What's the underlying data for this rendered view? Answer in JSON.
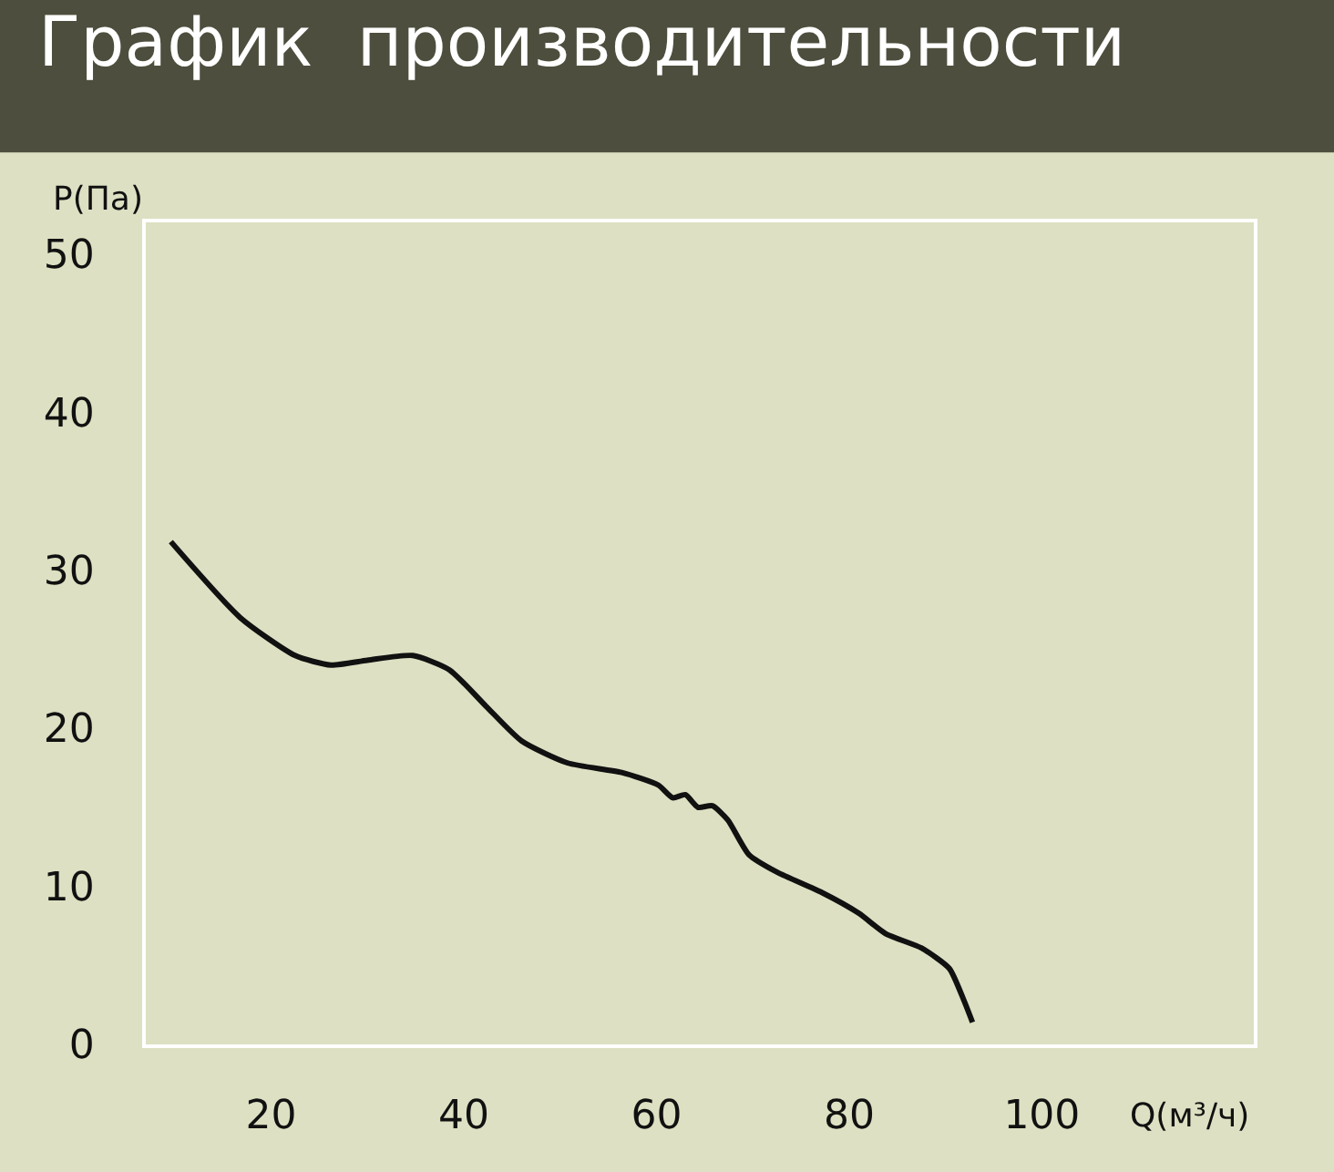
{
  "chart_data": {
    "type": "line",
    "title": "График  производительности",
    "xlabel": "Q(м³/ч)",
    "ylabel": "P(Па)",
    "x": [
      9.6,
      16.8,
      22.5,
      26.2,
      30,
      34.7,
      38.5,
      42.3,
      46,
      50.8,
      56.4,
      60.2,
      61.7,
      63,
      64.3,
      65.8,
      67.4,
      69.6,
      72.5,
      77.2,
      81,
      83.8,
      87.5,
      90.4,
      91.9,
      92.8
    ],
    "series": [
      {
        "color": "#111111",
        "values": [
          31.8,
          27,
          24.6,
          24,
          24.3,
          24.6,
          23.7,
          21.4,
          19.2,
          17.8,
          17.2,
          16.4,
          15.6,
          15.8,
          15,
          15.1,
          14.2,
          12,
          10.9,
          9.6,
          8.3,
          7,
          6.1,
          4.8,
          2.8,
          1.4
        ]
      }
    ],
    "xlim": [
      7,
      122
    ],
    "ylim": [
      0,
      52
    ],
    "xticks": [
      20,
      40,
      60,
      80,
      100
    ],
    "yticks": [
      0,
      10,
      20,
      30,
      40,
      50
    ],
    "grid": false,
    "marker": "none",
    "line_style": "solid"
  }
}
